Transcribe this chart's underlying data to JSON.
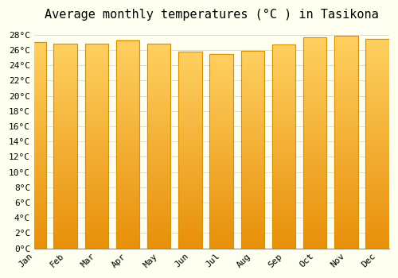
{
  "title": "Average monthly temperatures (°C ) in Tasikona",
  "months": [
    "Jan",
    "Feb",
    "Mar",
    "Apr",
    "May",
    "Jun",
    "Jul",
    "Aug",
    "Sep",
    "Oct",
    "Nov",
    "Dec"
  ],
  "values": [
    27.0,
    26.8,
    26.8,
    27.3,
    26.8,
    25.8,
    25.5,
    25.9,
    26.7,
    27.7,
    27.9,
    27.5
  ],
  "ylim": [
    0,
    29
  ],
  "ytick_max": 28,
  "ytick_step": 2,
  "bar_color": "#FFC82A",
  "bar_edge_color": "#D4900A",
  "background_color": "#FFFFF0",
  "grid_color": "#DDDDDD",
  "title_fontsize": 11,
  "tick_fontsize": 8,
  "font_family": "monospace"
}
